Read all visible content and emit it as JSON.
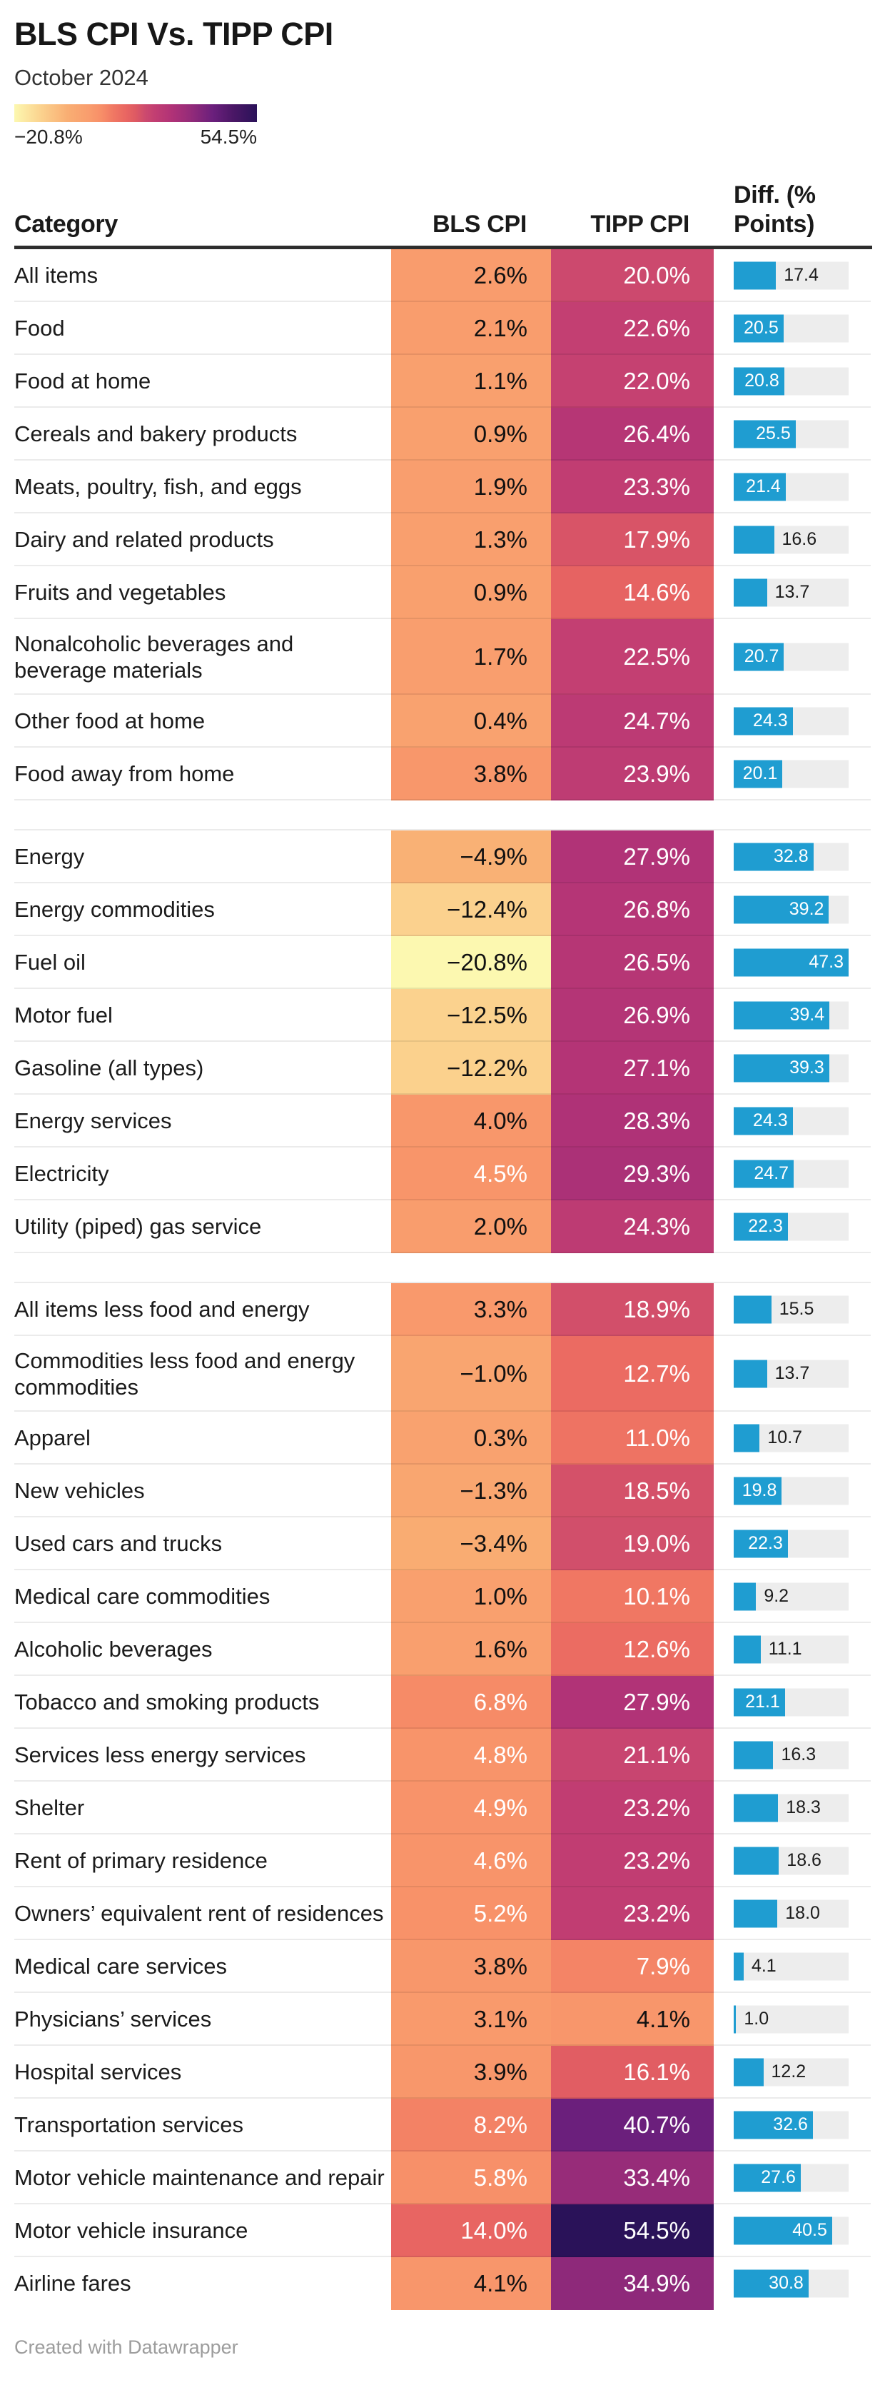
{
  "chart_data": {
    "type": "table",
    "title": "BLS CPI Vs. TIPP CPI",
    "subtitle": "October 2024",
    "columns": {
      "category": "Category",
      "bls": "BLS CPI",
      "tipp": "TIPP CPI",
      "diff": [
        "Diff. (%",
        "Points)"
      ]
    },
    "color_scale": {
      "min": -20.8,
      "max": 54.5,
      "min_label": "−20.8%",
      "max_label": "54.5%",
      "gradient_stops": [
        {
          "pos": 0.0,
          "color": "#fcf8b0"
        },
        {
          "pos": 0.11,
          "color": "#fbd28e"
        },
        {
          "pos": 0.22,
          "color": "#f9ae73"
        },
        {
          "pos": 0.31,
          "color": "#f99c6d"
        },
        {
          "pos": 0.36,
          "color": "#f78e68"
        },
        {
          "pos": 0.41,
          "color": "#f07763"
        },
        {
          "pos": 0.46,
          "color": "#e96662"
        },
        {
          "pos": 0.5,
          "color": "#de5a63"
        },
        {
          "pos": 0.54,
          "color": "#cc4a6e"
        },
        {
          "pos": 0.58,
          "color": "#c23e72"
        },
        {
          "pos": 0.65,
          "color": "#b03277"
        },
        {
          "pos": 0.72,
          "color": "#972c79"
        },
        {
          "pos": 0.82,
          "color": "#6a1f7c"
        },
        {
          "pos": 0.9,
          "color": "#4b1766"
        },
        {
          "pos": 1.0,
          "color": "#2a1259"
        }
      ]
    },
    "bar_axis": {
      "min": 0,
      "max": 47.3
    },
    "sections": [
      {
        "rows": [
          {
            "category": "All items",
            "bls": 2.6,
            "tipp": 20.0,
            "diff": 17.4
          },
          {
            "category": "Food",
            "bls": 2.1,
            "tipp": 22.6,
            "diff": 20.5
          },
          {
            "category": "Food at home",
            "bls": 1.1,
            "tipp": 22.0,
            "diff": 20.8
          },
          {
            "category": "Cereals and bakery products",
            "bls": 0.9,
            "tipp": 26.4,
            "diff": 25.5
          },
          {
            "category": "Meats, poultry, fish, and eggs",
            "bls": 1.9,
            "tipp": 23.3,
            "diff": 21.4
          },
          {
            "category": "Dairy and related products",
            "bls": 1.3,
            "tipp": 17.9,
            "diff": 16.6
          },
          {
            "category": "Fruits and vegetables",
            "bls": 0.9,
            "tipp": 14.6,
            "diff": 13.7
          },
          {
            "category": "Nonalcoholic beverages and beverage materials",
            "bls": 1.7,
            "tipp": 22.5,
            "diff": 20.7
          },
          {
            "category": "Other food at home",
            "bls": 0.4,
            "tipp": 24.7,
            "diff": 24.3
          },
          {
            "category": "Food away from home",
            "bls": 3.8,
            "tipp": 23.9,
            "diff": 20.1
          }
        ]
      },
      {
        "rows": [
          {
            "category": "Energy",
            "bls": -4.9,
            "tipp": 27.9,
            "diff": 32.8
          },
          {
            "category": "Energy commodities",
            "bls": -12.4,
            "tipp": 26.8,
            "diff": 39.2
          },
          {
            "category": "Fuel oil",
            "bls": -20.8,
            "tipp": 26.5,
            "diff": 47.3
          },
          {
            "category": "Motor fuel",
            "bls": -12.5,
            "tipp": 26.9,
            "diff": 39.4
          },
          {
            "category": "Gasoline (all types)",
            "bls": -12.2,
            "tipp": 27.1,
            "diff": 39.3
          },
          {
            "category": "Energy services",
            "bls": 4.0,
            "tipp": 28.3,
            "diff": 24.3
          },
          {
            "category": "Electricity",
            "bls": 4.5,
            "tipp": 29.3,
            "diff": 24.7
          },
          {
            "category": "Utility (piped) gas service",
            "bls": 2.0,
            "tipp": 24.3,
            "diff": 22.3
          }
        ]
      },
      {
        "rows": [
          {
            "category": "All items less food and energy",
            "bls": 3.3,
            "tipp": 18.9,
            "diff": 15.5
          },
          {
            "category": "Commodities less food and energy commodities",
            "bls": -1.0,
            "tipp": 12.7,
            "diff": 13.7
          },
          {
            "category": "Apparel",
            "bls": 0.3,
            "tipp": 11.0,
            "diff": 10.7
          },
          {
            "category": "New vehicles",
            "bls": -1.3,
            "tipp": 18.5,
            "diff": 19.8
          },
          {
            "category": "Used cars and trucks",
            "bls": -3.4,
            "tipp": 19.0,
            "diff": 22.3
          },
          {
            "category": "Medical care commodities",
            "bls": 1.0,
            "tipp": 10.1,
            "diff": 9.2
          },
          {
            "category": "Alcoholic beverages",
            "bls": 1.6,
            "tipp": 12.6,
            "diff": 11.1
          },
          {
            "category": "Tobacco and smoking products",
            "bls": 6.8,
            "tipp": 27.9,
            "diff": 21.1
          },
          {
            "category": "Services less energy services",
            "bls": 4.8,
            "tipp": 21.1,
            "diff": 16.3
          },
          {
            "category": "Shelter",
            "bls": 4.9,
            "tipp": 23.2,
            "diff": 18.3
          },
          {
            "category": "Rent of primary residence",
            "bls": 4.6,
            "tipp": 23.2,
            "diff": 18.6
          },
          {
            "category": "Owners’ equivalent rent of residences",
            "bls": 5.2,
            "tipp": 23.2,
            "diff": 18.0
          },
          {
            "category": "Medical care services",
            "bls": 3.8,
            "tipp": 7.9,
            "diff": 4.1
          },
          {
            "category": "Physicians’ services",
            "bls": 3.1,
            "tipp": 4.1,
            "diff": 1.0
          },
          {
            "category": "Hospital services",
            "bls": 3.9,
            "tipp": 16.1,
            "diff": 12.2
          },
          {
            "category": "Transportation services",
            "bls": 8.2,
            "tipp": 40.7,
            "diff": 32.6
          },
          {
            "category": "Motor vehicle maintenance and repair",
            "bls": 5.8,
            "tipp": 33.4,
            "diff": 27.6
          },
          {
            "category": "Motor vehicle insurance",
            "bls": 14.0,
            "tipp": 54.5,
            "diff": 40.5
          },
          {
            "category": "Airline fares",
            "bls": 4.1,
            "tipp": 34.9,
            "diff": 30.8
          }
        ]
      }
    ]
  },
  "colors": {
    "bar_blue": "#1f9dd1",
    "bar_track": "#ededed",
    "header_rule": "#2d2d2d",
    "row_separator": "rgba(0,0,0,0.08)",
    "cell_text_dark": "#111111",
    "cell_text_light": "#ffffff",
    "footer_text": "#9d9d9d"
  },
  "footer": {
    "text": "Created with Datawrapper"
  }
}
